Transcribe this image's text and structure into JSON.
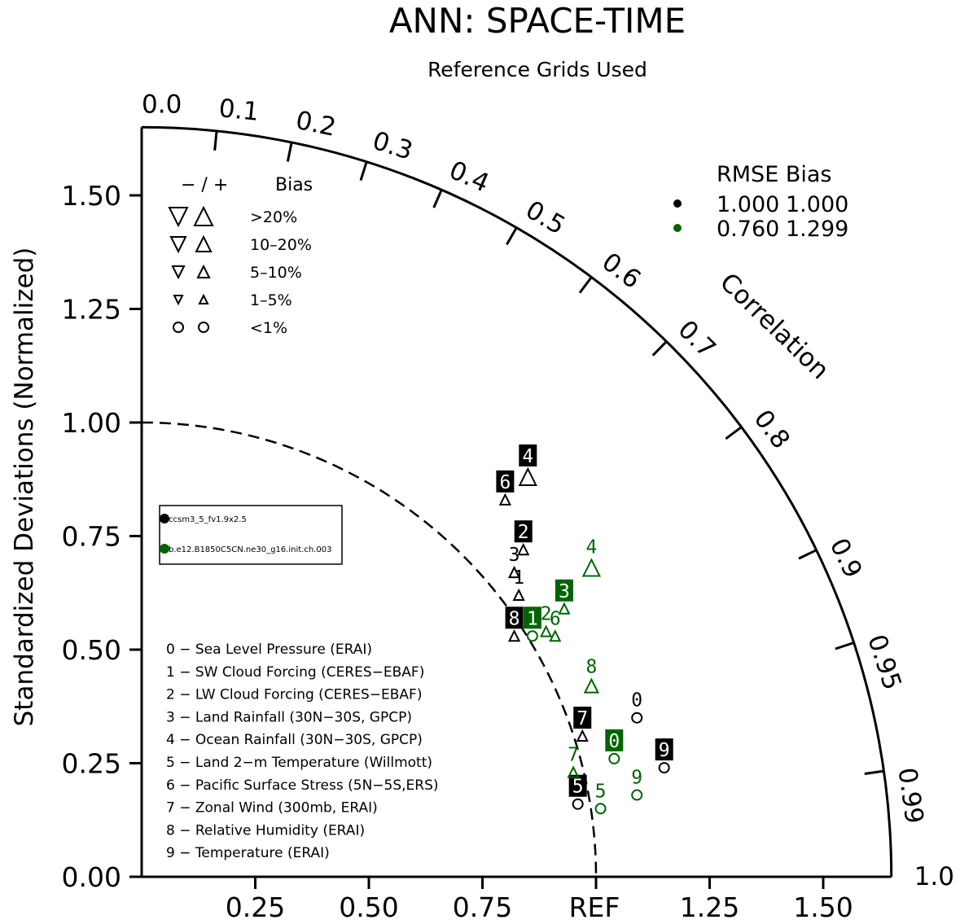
{
  "chart_data": {
    "type": "scatter",
    "subtype": "taylor-diagram",
    "title": "ANN: SPACE-TIME",
    "subtitle": "Reference Grids Used",
    "ylabel": "Standardized Deviations (Normalized)",
    "arc_label": "Correlation",
    "ref_label": "REF",
    "std_range": [
      0,
      1.65
    ],
    "y_tick_labels": [
      "0.00",
      "0.25",
      "0.50",
      "0.75",
      "1.00",
      "1.25",
      "1.50"
    ],
    "x_tick_labels": [
      "0.25",
      "0.50",
      "0.75",
      "1.25",
      "1.50"
    ],
    "corr_tick_labels": [
      "0.0",
      "0.1",
      "0.2",
      "0.3",
      "0.4",
      "0.5",
      "0.6",
      "0.7",
      "0.8",
      "0.9",
      "0.95",
      "0.99",
      "1.0"
    ],
    "bias_legend": {
      "header_sign": "− / +",
      "header_bias": "Bias",
      "rows": [
        ">20%",
        "10–20%",
        "5–10%",
        "1–5%",
        "<1%"
      ]
    },
    "rmse_legend": {
      "header": "RMSE  Bias",
      "rows": [
        {
          "color": "#000000",
          "rmse": "1.000",
          "bias": "1.000"
        },
        {
          "color": "#006400",
          "rmse": "0.760",
          "bias": "1.299"
        }
      ]
    },
    "case_legend": [
      {
        "name": "ccsm3_5_fv1.9x2.5",
        "color": "#000000"
      },
      {
        "name": "b.e12.B1850C5CN.ne30_g16.init.ch.003",
        "color": "#006400"
      }
    ],
    "variables": [
      "0 − Sea Level Pressure (ERAI)",
      "1 − SW Cloud Forcing (CERES−EBAF)",
      "2 − LW Cloud Forcing (CERES−EBAF)",
      "3 − Land Rainfall (30N−30S, GPCP)",
      "4 − Ocean Rainfall (30N−30S, GPCP)",
      "5 − Land 2−m Temperature (Willmott)",
      "6 − Pacific Surface Stress (5N−5S,ERS)",
      "7 − Zonal Wind (300mb, ERAI)",
      "8 − Relative Humidity (ERAI)",
      "9 − Temperature (ERAI)"
    ],
    "series": [
      {
        "color": "#000000",
        "points": [
          {
            "id": "0",
            "x": 1.09,
            "y": 0.35,
            "marker": "circle",
            "size": "small",
            "boxed": false
          },
          {
            "id": "1",
            "x": 0.83,
            "y": 0.62,
            "marker": "up",
            "size": "small",
            "boxed": false
          },
          {
            "id": "2",
            "x": 0.84,
            "y": 0.72,
            "marker": "up",
            "size": "small",
            "boxed": true
          },
          {
            "id": "3",
            "x": 0.82,
            "y": 0.67,
            "marker": "up",
            "size": "small",
            "boxed": false
          },
          {
            "id": "4",
            "x": 0.85,
            "y": 0.88,
            "marker": "up",
            "size": "large",
            "boxed": true
          },
          {
            "id": "5",
            "x": 0.96,
            "y": 0.16,
            "marker": "circle",
            "size": "small",
            "boxed": true
          },
          {
            "id": "6",
            "x": 0.8,
            "y": 0.83,
            "marker": "up",
            "size": "small",
            "boxed": true
          },
          {
            "id": "7",
            "x": 0.97,
            "y": 0.31,
            "marker": "up",
            "size": "small",
            "boxed": true
          },
          {
            "id": "8",
            "x": 0.82,
            "y": 0.53,
            "marker": "up",
            "size": "small",
            "boxed": true
          },
          {
            "id": "9",
            "x": 1.15,
            "y": 0.24,
            "marker": "circle",
            "size": "small",
            "boxed": true
          }
        ]
      },
      {
        "color": "#006400",
        "points": [
          {
            "id": "0",
            "x": 1.04,
            "y": 0.26,
            "marker": "circle",
            "size": "small",
            "boxed": true
          },
          {
            "id": "1",
            "x": 0.86,
            "y": 0.53,
            "marker": "circle",
            "size": "small",
            "boxed": true
          },
          {
            "id": "2",
            "x": 0.89,
            "y": 0.54,
            "marker": "up",
            "size": "small",
            "boxed": false
          },
          {
            "id": "3",
            "x": 0.93,
            "y": 0.59,
            "marker": "up",
            "size": "small",
            "boxed": true
          },
          {
            "id": "4",
            "x": 0.99,
            "y": 0.68,
            "marker": "up",
            "size": "large",
            "boxed": false
          },
          {
            "id": "5",
            "x": 1.01,
            "y": 0.15,
            "marker": "circle",
            "size": "small",
            "boxed": false
          },
          {
            "id": "6",
            "x": 0.91,
            "y": 0.53,
            "marker": "up",
            "size": "small",
            "boxed": false
          },
          {
            "id": "7",
            "x": 0.95,
            "y": 0.23,
            "marker": "up",
            "size": "small",
            "boxed": false
          },
          {
            "id": "8",
            "x": 0.99,
            "y": 0.42,
            "marker": "up",
            "size": "medium",
            "boxed": false
          },
          {
            "id": "9",
            "x": 1.09,
            "y": 0.18,
            "marker": "circle",
            "size": "small",
            "boxed": false
          }
        ]
      }
    ]
  }
}
